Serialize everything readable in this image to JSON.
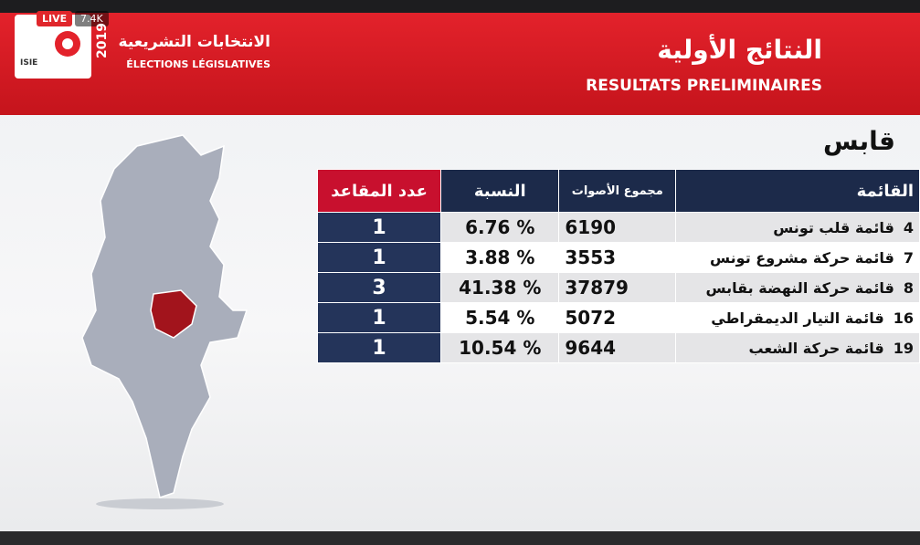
{
  "live_badge": {
    "label": "LIVE",
    "viewers": "7.4K"
  },
  "logo": {
    "text": "ISIE"
  },
  "header": {
    "year": "2019",
    "title_ar": "الانتخابات التشريعية",
    "title_fr": "ÉLECTIONS LÉGISLATIVES",
    "heading_ar": "النتائج الأولية",
    "heading_fr": "RESULTATS PRELIMINAIRES"
  },
  "region": "قابس",
  "table": {
    "columns": [
      "القائمة",
      "مجموع الأصوات",
      "النسبة",
      "عدد المقاعد"
    ],
    "rows": [
      [
        4,
        "قائمة قلب تونس",
        6190,
        "6.76 %",
        1
      ],
      [
        7,
        "قائمة حركة مشروع تونس",
        3553,
        "3.88 %",
        1
      ],
      [
        8,
        "قائمة حركة النهضة بقابس",
        37879,
        "41.38 %",
        3
      ],
      [
        16,
        "قائمة التيار الديمقراطي",
        5072,
        "5.54 %",
        1
      ],
      [
        19,
        "قائمة حركة الشعب",
        9644,
        "10.54 %",
        1
      ]
    ]
  }
}
